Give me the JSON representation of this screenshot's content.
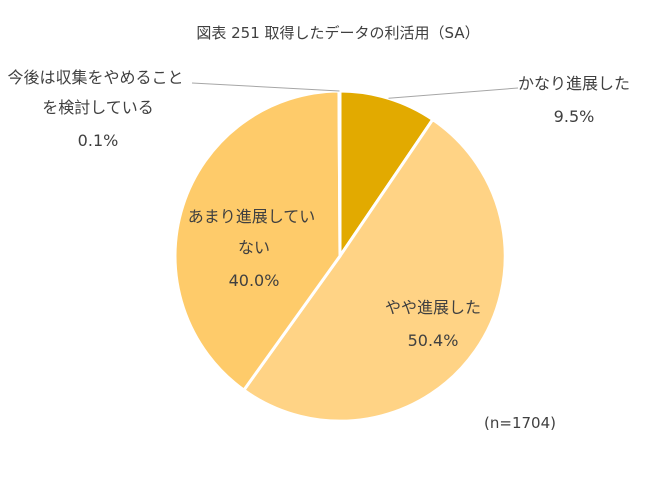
{
  "chart_data": {
    "type": "pie",
    "title": "図表 251 取得したデータの利活用（SA）",
    "note": "(n=1704)",
    "slices": [
      {
        "label_lines": [
          "かなり進展した"
        ],
        "value_text": "9.5%",
        "value": 9.5,
        "color": "#E2AA00"
      },
      {
        "label_lines": [
          "やや進展した"
        ],
        "value_text": "50.4%",
        "value": 50.4,
        "color": "#FFD385"
      },
      {
        "label_lines": [
          "あまり進展してい",
          "ない"
        ],
        "value_text": "40.0%",
        "value": 40.0,
        "color": "#FECB6A"
      },
      {
        "label_lines": [
          "今後は収集をやめること",
          "を検討している"
        ],
        "value_text": "0.1%",
        "value": 0.1,
        "color": "#FFE9B3"
      }
    ]
  }
}
